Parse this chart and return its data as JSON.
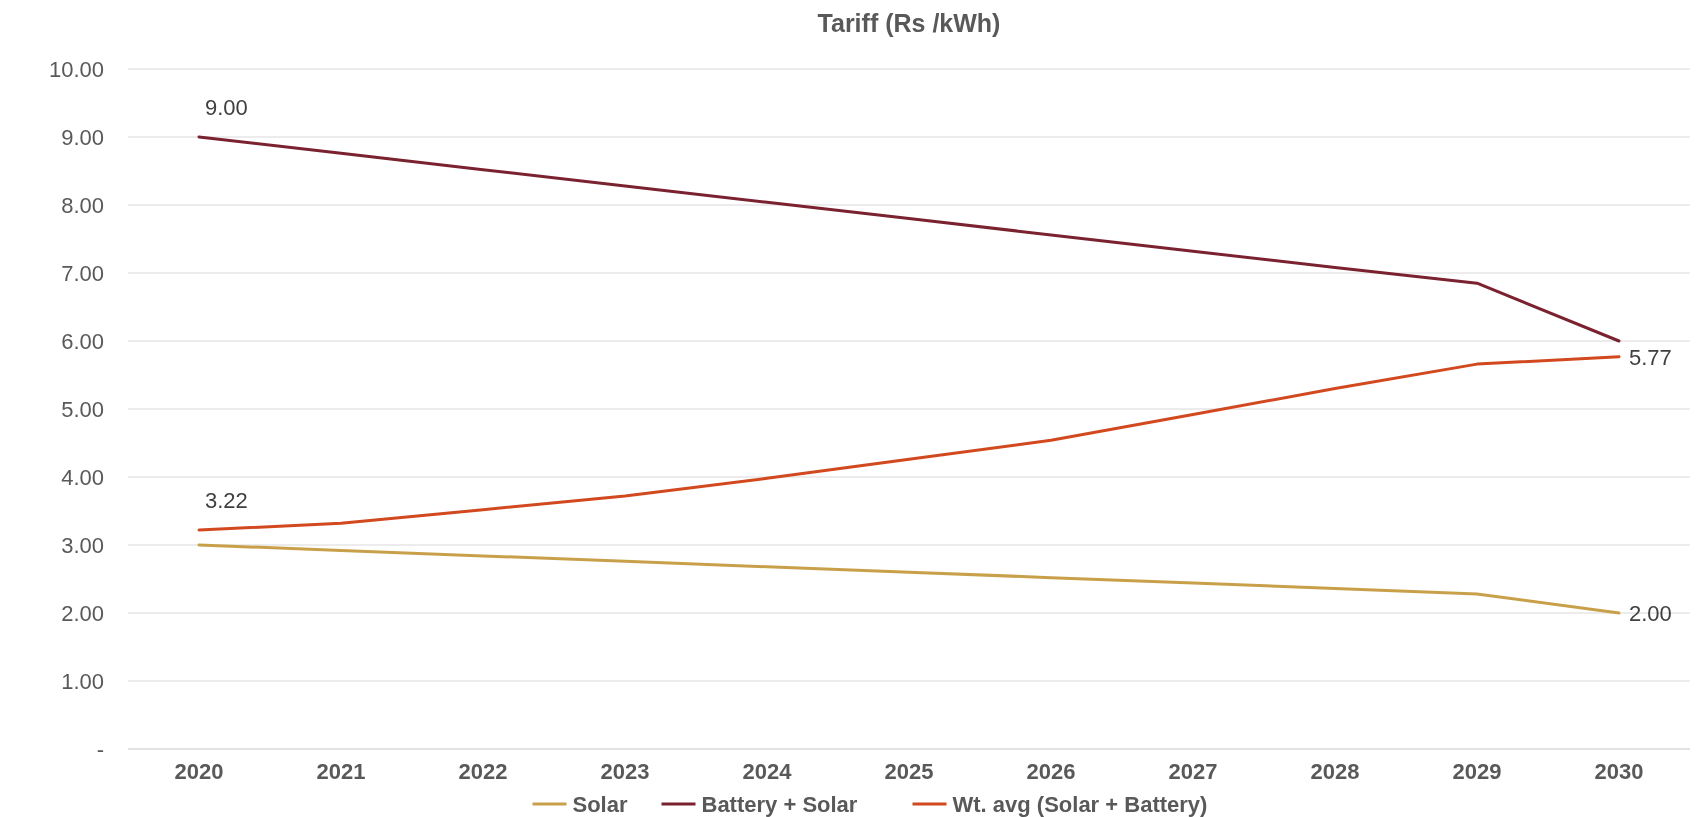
{
  "chart_data": {
    "type": "line",
    "title": "Tariff (Rs /kWh)",
    "categories": [
      "2020",
      "2021",
      "2022",
      "2023",
      "2024",
      "2025",
      "2026",
      "2027",
      "2028",
      "2029",
      "2030"
    ],
    "series": [
      {
        "name": "Solar",
        "color": "#c9a04a",
        "values": [
          3.0,
          2.92,
          2.84,
          2.76,
          2.68,
          2.6,
          2.52,
          2.44,
          2.36,
          2.28,
          2.0
        ],
        "value_labels": [
          null,
          null,
          null,
          null,
          null,
          null,
          null,
          null,
          null,
          null,
          "2.00"
        ]
      },
      {
        "name": "Battery + Solar",
        "color": "#7b2230",
        "values": [
          9.0,
          8.76,
          8.52,
          8.28,
          8.04,
          7.8,
          7.56,
          7.32,
          7.08,
          6.85,
          6.0
        ],
        "value_labels": [
          "9.00",
          null,
          null,
          null,
          null,
          null,
          null,
          null,
          null,
          null,
          null
        ]
      },
      {
        "name": "Wt. avg (Solar + Battery)",
        "color": "#d2491f",
        "values": [
          3.22,
          3.32,
          3.52,
          3.72,
          3.98,
          4.26,
          4.54,
          4.92,
          5.3,
          5.66,
          5.77
        ],
        "value_labels": [
          "3.22",
          null,
          null,
          null,
          null,
          null,
          null,
          null,
          null,
          null,
          "5.77"
        ]
      }
    ],
    "ylim": [
      0,
      10
    ],
    "yticks": [
      {
        "value": 0,
        "label": "-"
      },
      {
        "value": 1,
        "label": "1.00"
      },
      {
        "value": 2,
        "label": "2.00"
      },
      {
        "value": 3,
        "label": "3.00"
      },
      {
        "value": 4,
        "label": "4.00"
      },
      {
        "value": 5,
        "label": "5.00"
      },
      {
        "value": 6,
        "label": "6.00"
      },
      {
        "value": 7,
        "label": "7.00"
      },
      {
        "value": 8,
        "label": "8.00"
      },
      {
        "value": 9,
        "label": "9.00"
      },
      {
        "value": 10,
        "label": "10.00"
      }
    ],
    "grid": "y",
    "legend": "bottom",
    "marker": "none",
    "line_style": "solid"
  }
}
